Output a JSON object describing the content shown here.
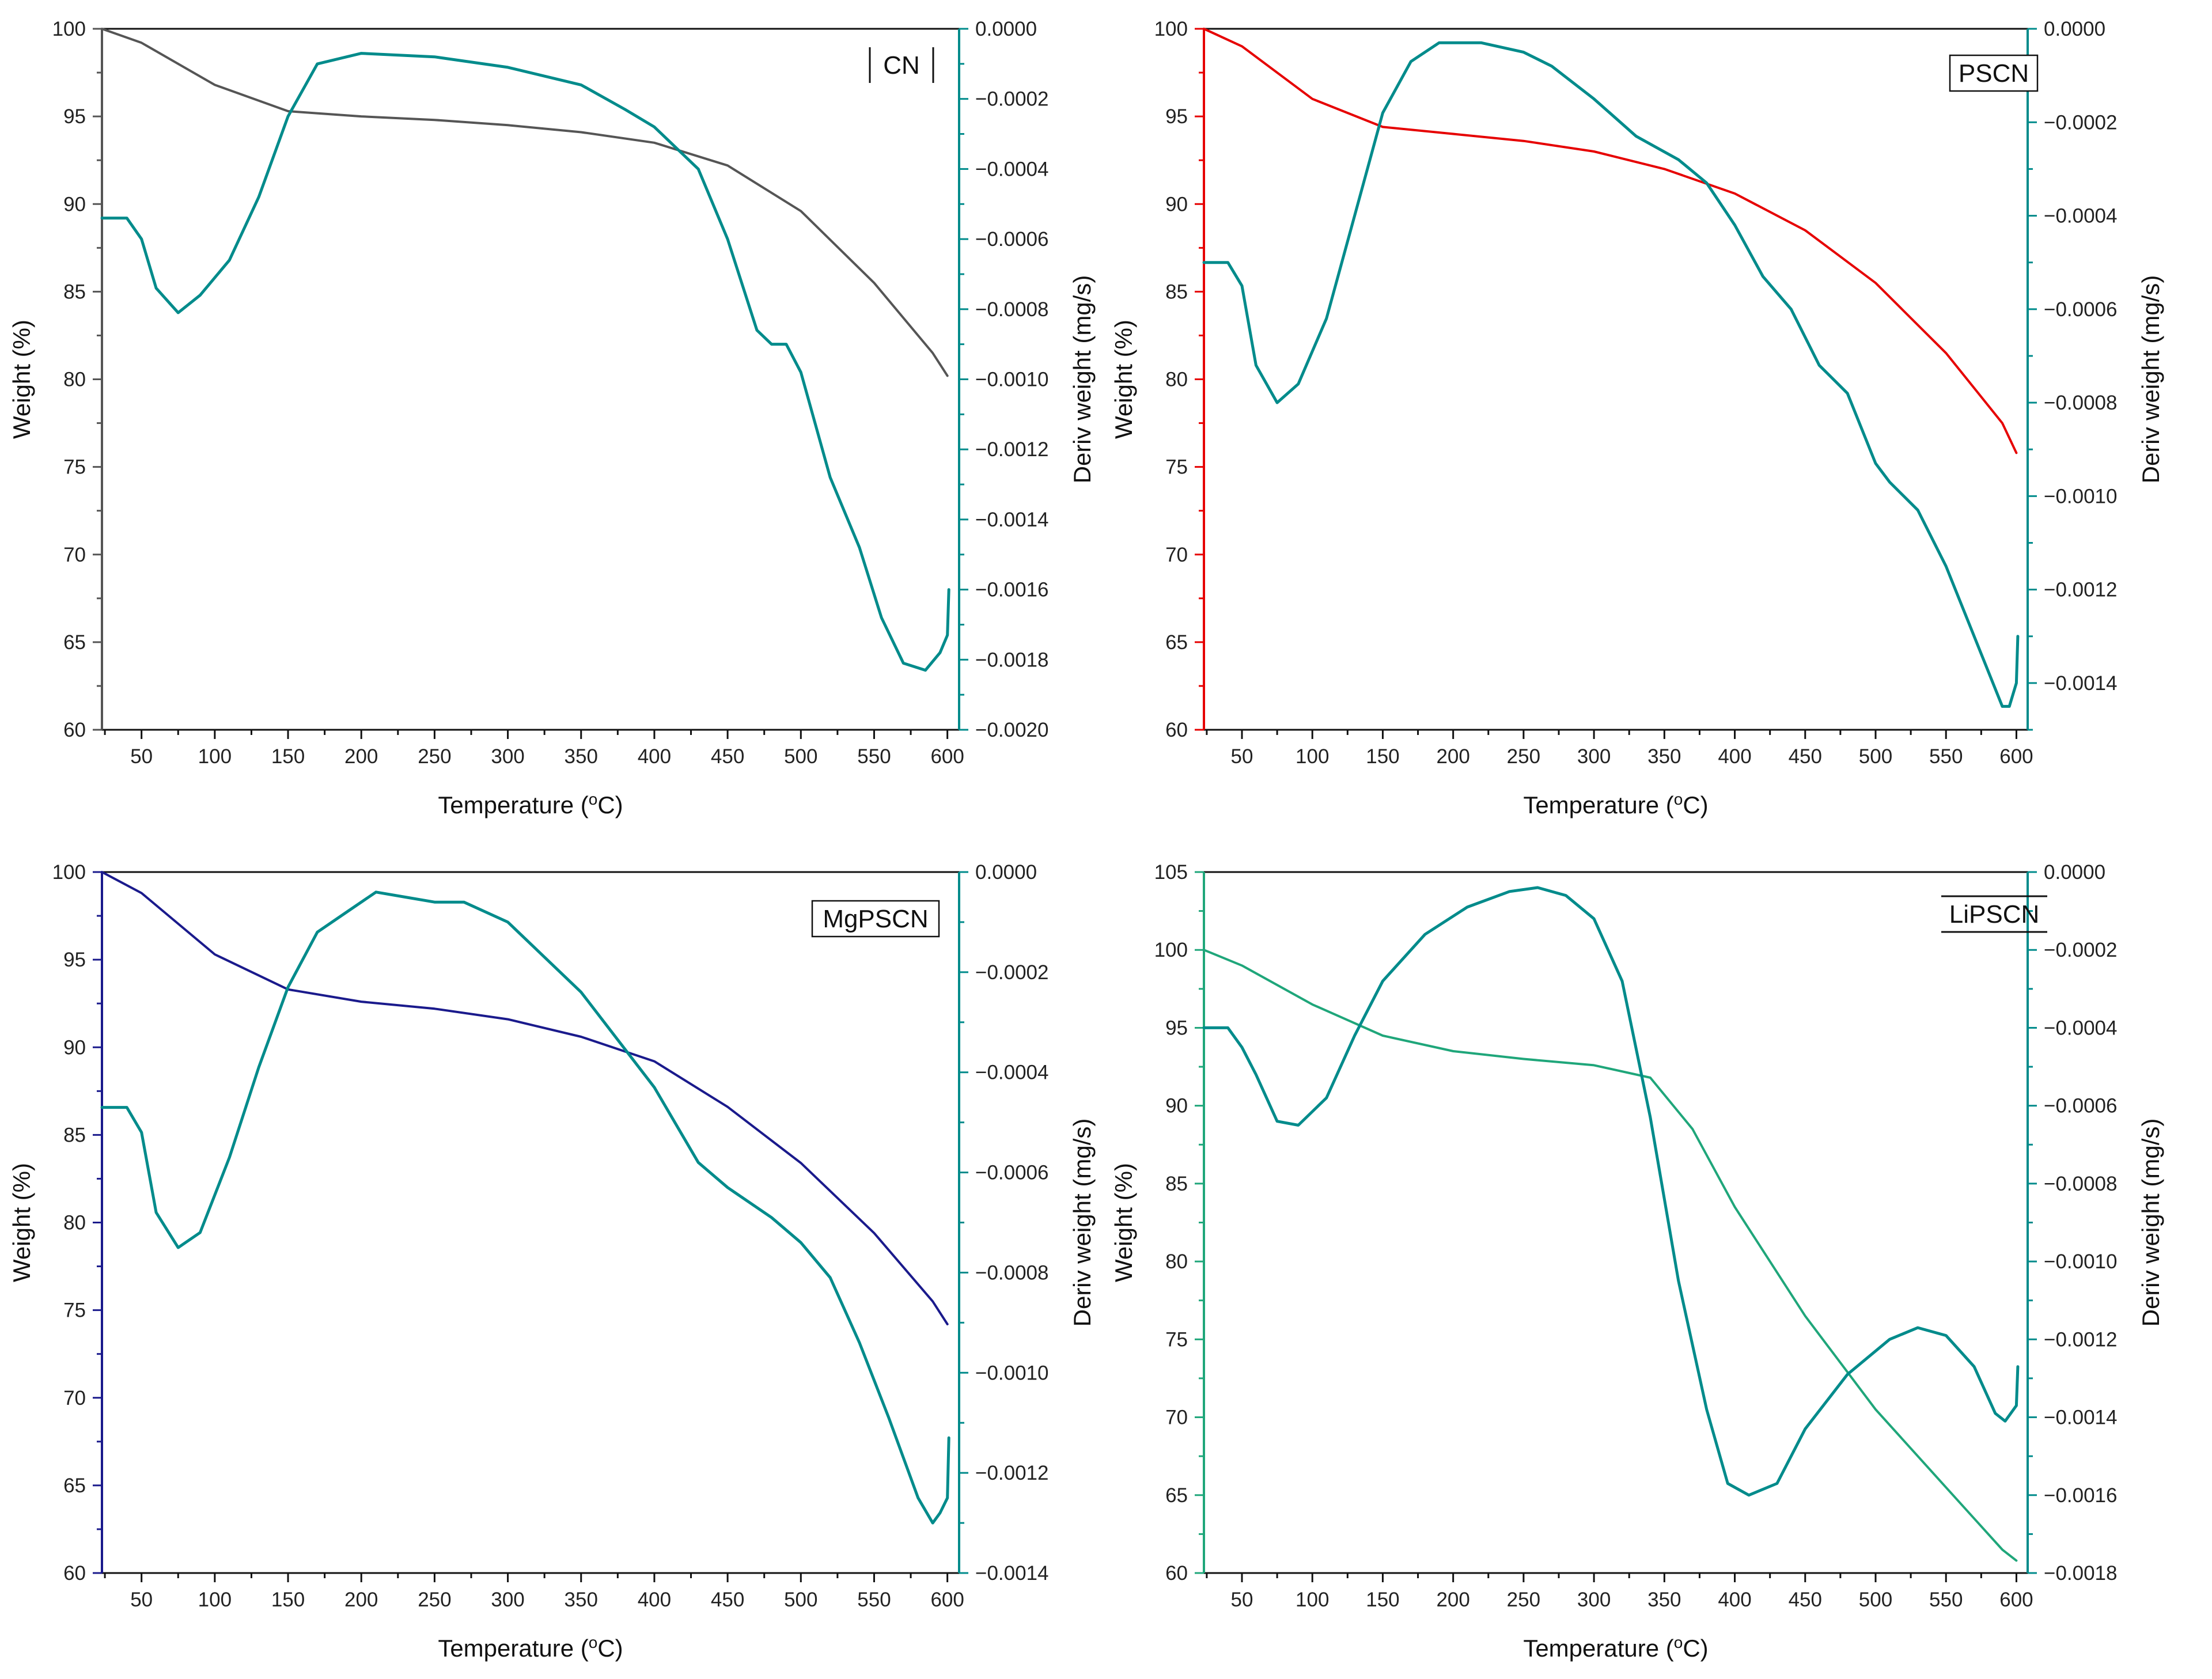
{
  "colors": {
    "deriv": "#008b8b",
    "frame": "#111111"
  },
  "chart_data": [
    {
      "type": "line",
      "panel": "top-left",
      "title": "CN",
      "legend_label": "CN",
      "legend_style": "bars",
      "xlabel": "Temperature (",
      "xlabel_sup": "o",
      "xlabel_tail": "C)",
      "ylabel": "Weight (%)",
      "y2label": "Deriv weight (mg/s)",
      "xlim": [
        23,
        608
      ],
      "ylim": [
        60,
        100
      ],
      "y2lim": [
        -0.002,
        0
      ],
      "xticks": [
        50,
        100,
        150,
        200,
        250,
        300,
        350,
        400,
        450,
        500,
        550,
        600
      ],
      "xtick_labels": [
        "50",
        "100",
        "150",
        "200",
        "250",
        "300",
        "350",
        "400",
        "450",
        "500",
        "550",
        "600"
      ],
      "yticks": [
        60,
        65,
        70,
        75,
        80,
        85,
        90,
        95,
        100
      ],
      "ytick_labels": [
        "60",
        "65",
        "70",
        "75",
        "80",
        "85",
        "90",
        "95",
        "100"
      ],
      "y2ticks": [
        0,
        -0.0002,
        -0.0004,
        -0.0006,
        -0.0008,
        -0.001,
        -0.0012,
        -0.0014,
        -0.0016,
        -0.0018,
        -0.002
      ],
      "y2tick_labels": [
        "0.0000",
        "−0.0002",
        "−0.0004",
        "−0.0006",
        "−0.0008",
        "−0.0010",
        "−0.0012",
        "−0.0014",
        "−0.0016",
        "−0.0018",
        "−0.0020"
      ],
      "weight_color": "#555555",
      "y1_axis_color": "#555555",
      "series": [
        {
          "name": "Weight (%)",
          "axis": "left",
          "x": [
            23,
            50,
            100,
            150,
            200,
            250,
            300,
            350,
            400,
            450,
            500,
            550,
            590,
            600
          ],
          "y": [
            100,
            99.2,
            96.8,
            95.3,
            95.0,
            94.8,
            94.5,
            94.1,
            93.5,
            92.2,
            89.6,
            85.5,
            81.5,
            80.2
          ]
        },
        {
          "name": "Deriv weight (mg/s)",
          "axis": "right",
          "x": [
            23,
            40,
            50,
            60,
            75,
            90,
            110,
            130,
            150,
            170,
            200,
            250,
            300,
            350,
            380,
            400,
            430,
            450,
            470,
            480,
            490,
            500,
            520,
            540,
            555,
            570,
            585,
            595,
            600,
            601
          ],
          "y": [
            -0.00054,
            -0.00054,
            -0.0006,
            -0.00074,
            -0.00081,
            -0.00076,
            -0.00066,
            -0.00048,
            -0.00025,
            -0.0001,
            -7e-05,
            -8e-05,
            -0.00011,
            -0.00016,
            -0.00023,
            -0.00028,
            -0.0004,
            -0.0006,
            -0.00086,
            -0.0009,
            -0.0009,
            -0.00098,
            -0.00128,
            -0.00148,
            -0.00168,
            -0.00181,
            -0.00183,
            -0.00178,
            -0.00173,
            -0.0016
          ]
        }
      ]
    },
    {
      "type": "line",
      "panel": "top-right",
      "title": "PSCN",
      "legend_label": "PSCN",
      "legend_style": "box",
      "xlabel": "Temperature (",
      "xlabel_sup": "o",
      "xlabel_tail": "C)",
      "ylabel": "Weight (%)",
      "y2label": "Deriv weight (mg/s)",
      "xlim": [
        23,
        608
      ],
      "ylim": [
        60,
        100
      ],
      "y2lim": [
        -0.0015,
        0
      ],
      "xticks": [
        50,
        100,
        150,
        200,
        250,
        300,
        350,
        400,
        450,
        500,
        550,
        600
      ],
      "xtick_labels": [
        "50",
        "100",
        "150",
        "200",
        "250",
        "300",
        "350",
        "400",
        "450",
        "500",
        "550",
        "600"
      ],
      "yticks": [
        60,
        65,
        70,
        75,
        80,
        85,
        90,
        95,
        100
      ],
      "ytick_labels": [
        "60",
        "65",
        "70",
        "75",
        "80",
        "85",
        "90",
        "95",
        "100"
      ],
      "y2ticks": [
        0,
        -0.0002,
        -0.0004,
        -0.0006,
        -0.0008,
        -0.001,
        -0.0012,
        -0.0014
      ],
      "y2tick_labels": [
        "0.0000",
        "−0.0002",
        "−0.0004",
        "−0.0006",
        "−0.0008",
        "−0.0010",
        "−0.0012",
        "−0.0014"
      ],
      "weight_color": "#e60000",
      "y1_axis_color": "#e60000",
      "series": [
        {
          "name": "Weight (%)",
          "axis": "left",
          "x": [
            23,
            50,
            100,
            150,
            200,
            250,
            300,
            350,
            400,
            450,
            500,
            550,
            590,
            600
          ],
          "y": [
            100,
            99.0,
            96.0,
            94.4,
            94.0,
            93.6,
            93.0,
            92.0,
            90.6,
            88.5,
            85.5,
            81.5,
            77.5,
            75.8
          ]
        },
        {
          "name": "Deriv weight (mg/s)",
          "axis": "right",
          "x": [
            23,
            40,
            50,
            60,
            75,
            90,
            110,
            130,
            150,
            170,
            190,
            220,
            250,
            270,
            300,
            330,
            360,
            380,
            400,
            420,
            440,
            460,
            480,
            500,
            510,
            530,
            550,
            570,
            590,
            595,
            600,
            601
          ],
          "y": [
            -0.0005,
            -0.0005,
            -0.00055,
            -0.00072,
            -0.0008,
            -0.00076,
            -0.00062,
            -0.0004,
            -0.00018,
            -7e-05,
            -3e-05,
            -3e-05,
            -5e-05,
            -8e-05,
            -0.00015,
            -0.00023,
            -0.00028,
            -0.00033,
            -0.00042,
            -0.00053,
            -0.0006,
            -0.00072,
            -0.00078,
            -0.00093,
            -0.00097,
            -0.00103,
            -0.00115,
            -0.0013,
            -0.00145,
            -0.00145,
            -0.0014,
            -0.0013
          ]
        }
      ]
    },
    {
      "type": "line",
      "panel": "bottom-left",
      "title": "MgPSCN",
      "legend_label": "MgPSCN",
      "legend_style": "box",
      "xlabel": "Temperature (",
      "xlabel_sup": "o",
      "xlabel_tail": "C)",
      "ylabel": "Weight (%)",
      "y2label": "Deriv weight (mg/s)",
      "xlim": [
        23,
        608
      ],
      "ylim": [
        60,
        100
      ],
      "y2lim": [
        -0.0014,
        0
      ],
      "xticks": [
        50,
        100,
        150,
        200,
        250,
        300,
        350,
        400,
        450,
        500,
        550,
        600
      ],
      "xtick_labels": [
        "50",
        "100",
        "150",
        "200",
        "250",
        "300",
        "350",
        "400",
        "450",
        "500",
        "550",
        "600"
      ],
      "yticks": [
        60,
        65,
        70,
        75,
        80,
        85,
        90,
        95,
        100
      ],
      "ytick_labels": [
        "60",
        "65",
        "70",
        "75",
        "80",
        "85",
        "90",
        "95",
        "100"
      ],
      "y2ticks": [
        0,
        -0.0002,
        -0.0004,
        -0.0006,
        -0.0008,
        -0.001,
        -0.0012,
        -0.0014
      ],
      "y2tick_labels": [
        "0.0000",
        "−0.0002",
        "−0.0004",
        "−0.0006",
        "−0.0008",
        "−0.0010",
        "−0.0012",
        "−0.0014"
      ],
      "weight_color": "#1a1a8c",
      "y1_axis_color": "#1a1a8c",
      "series": [
        {
          "name": "Weight (%)",
          "axis": "left",
          "x": [
            23,
            50,
            100,
            150,
            200,
            250,
            300,
            350,
            400,
            450,
            500,
            550,
            590,
            600
          ],
          "y": [
            100,
            98.8,
            95.3,
            93.3,
            92.6,
            92.2,
            91.6,
            90.6,
            89.2,
            86.6,
            83.4,
            79.4,
            75.5,
            74.2
          ]
        },
        {
          "name": "Deriv weight (mg/s)",
          "axis": "right",
          "x": [
            23,
            40,
            50,
            60,
            75,
            90,
            110,
            130,
            150,
            170,
            190,
            210,
            230,
            250,
            270,
            300,
            350,
            400,
            430,
            450,
            480,
            500,
            520,
            540,
            560,
            580,
            590,
            595,
            600,
            601
          ],
          "y": [
            -0.00047,
            -0.00047,
            -0.00052,
            -0.00068,
            -0.00075,
            -0.00072,
            -0.00057,
            -0.00039,
            -0.00023,
            -0.00012,
            -8e-05,
            -4e-05,
            -5e-05,
            -6e-05,
            -6e-05,
            -0.0001,
            -0.00024,
            -0.00043,
            -0.00058,
            -0.00063,
            -0.00069,
            -0.00074,
            -0.00081,
            -0.00094,
            -0.00109,
            -0.00125,
            -0.0013,
            -0.00128,
            -0.00125,
            -0.00113
          ]
        }
      ]
    },
    {
      "type": "line",
      "panel": "bottom-right",
      "title": "LiPSCN",
      "legend_label": "LiPSCN",
      "legend_style": "lines",
      "xlabel": "Temperature (",
      "xlabel_sup": "o",
      "xlabel_tail": "C)",
      "ylabel": "Weight (%)",
      "y2label": "Deriv weight (mg/s)",
      "xlim": [
        23,
        608
      ],
      "ylim": [
        60,
        105
      ],
      "y2lim": [
        -0.0018,
        0
      ],
      "xticks": [
        50,
        100,
        150,
        200,
        250,
        300,
        350,
        400,
        450,
        500,
        550,
        600
      ],
      "xtick_labels": [
        "50",
        "100",
        "150",
        "200",
        "250",
        "300",
        "350",
        "400",
        "450",
        "500",
        "550",
        "600"
      ],
      "yticks": [
        60,
        65,
        70,
        75,
        80,
        85,
        90,
        95,
        100,
        105
      ],
      "ytick_labels": [
        "60",
        "65",
        "70",
        "75",
        "80",
        "85",
        "90",
        "95",
        "100",
        "105"
      ],
      "y2ticks": [
        0,
        -0.0002,
        -0.0004,
        -0.0006,
        -0.0008,
        -0.001,
        -0.0012,
        -0.0014,
        -0.0016,
        -0.0018
      ],
      "y2tick_labels": [
        "0.0000",
        "−0.0002",
        "−0.0004",
        "−0.0006",
        "−0.0008",
        "−0.0010",
        "−0.0012",
        "−0.0014",
        "−0.0016",
        "−0.0018"
      ],
      "weight_color": "#1fa67a",
      "y1_axis_color": "#1fa67a",
      "series": [
        {
          "name": "Weight (%)",
          "axis": "left",
          "x": [
            23,
            50,
            100,
            150,
            200,
            250,
            300,
            340,
            370,
            400,
            450,
            500,
            550,
            590,
            600
          ],
          "y": [
            100,
            99.0,
            96.5,
            94.5,
            93.5,
            93.0,
            92.6,
            91.8,
            88.5,
            83.5,
            76.5,
            70.5,
            65.5,
            61.5,
            60.8
          ]
        },
        {
          "name": "Deriv weight (mg/s)",
          "axis": "right",
          "x": [
            23,
            40,
            50,
            60,
            75,
            90,
            110,
            130,
            150,
            180,
            210,
            240,
            260,
            280,
            300,
            320,
            340,
            360,
            380,
            395,
            410,
            430,
            450,
            480,
            510,
            530,
            550,
            570,
            585,
            592,
            600,
            601
          ],
          "y": [
            -0.0004,
            -0.0004,
            -0.00045,
            -0.00052,
            -0.00064,
            -0.00065,
            -0.00058,
            -0.00042,
            -0.00028,
            -0.00016,
            -9e-05,
            -5e-05,
            -4e-05,
            -6e-05,
            -0.00012,
            -0.00028,
            -0.00063,
            -0.00105,
            -0.00138,
            -0.00157,
            -0.0016,
            -0.00157,
            -0.00143,
            -0.00129,
            -0.0012,
            -0.00117,
            -0.00119,
            -0.00127,
            -0.00139,
            -0.00141,
            -0.00137,
            -0.00127
          ]
        }
      ]
    }
  ]
}
